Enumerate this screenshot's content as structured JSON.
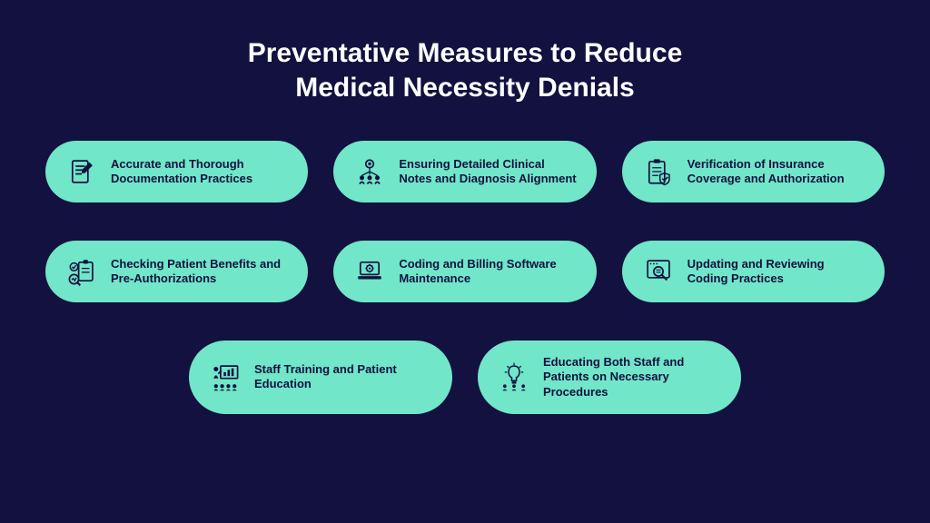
{
  "background_color": "#12113f",
  "pill_color": "#71e6c9",
  "text_color": "#12113f",
  "title_color": "#ffffff",
  "title_fontsize": 30,
  "label_fontsize": 13,
  "title_line1": "Preventative Measures to Reduce",
  "title_line2": "Medical Necessity Denials",
  "rows": [
    [
      {
        "icon": "document-edit",
        "label": "Accurate and Thorough Documentation Practices"
      },
      {
        "icon": "team-target",
        "label": "Ensuring Detailed Clinical Notes and Diagnosis Alignment"
      },
      {
        "icon": "clipboard-shield",
        "label": "Verification of Insurance Coverage and Authorization"
      }
    ],
    [
      {
        "icon": "chart-check",
        "label": "Checking Patient Benefits and Pre-Authorizations"
      },
      {
        "icon": "laptop-gear",
        "label": "Coding and Billing Software Maintenance"
      },
      {
        "icon": "magnify-doc",
        "label": "Updating and Reviewing Coding Practices"
      }
    ],
    [
      {
        "icon": "presentation",
        "label": "Staff Training and Patient Education"
      },
      {
        "icon": "idea-people",
        "label": "Educating Both Staff and Patients on Necessary Procedures"
      }
    ]
  ]
}
